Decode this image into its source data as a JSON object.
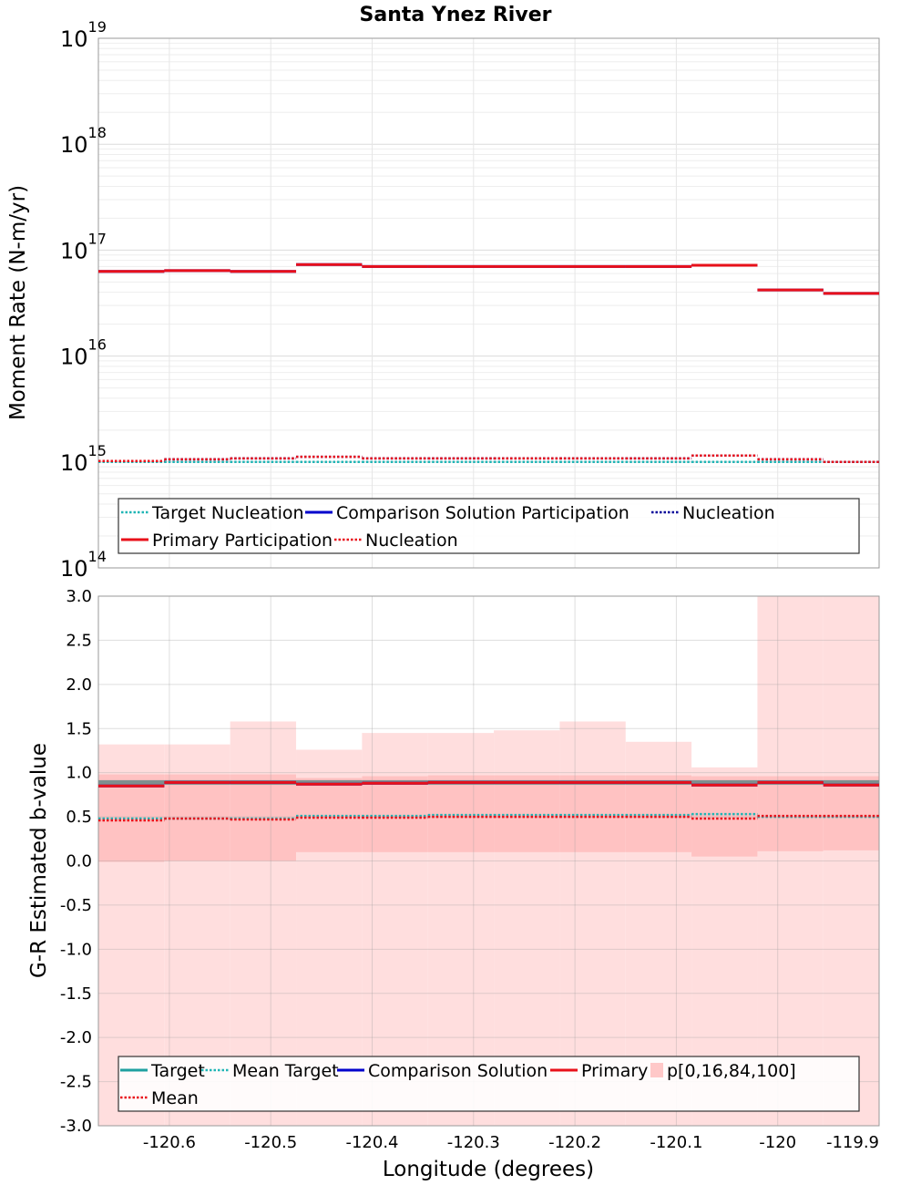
{
  "chart_data": [
    {
      "type": "line",
      "title": "Santa Ynez River",
      "xlabel": "Longitude (degrees)",
      "ylabel": "Moment Rate (N-m/yr)",
      "yscale": "log",
      "ylim": [
        100000000000000.0,
        1e+19
      ],
      "xlim": [
        -120.67,
        -119.9
      ],
      "y_tick_base": "10",
      "y_ticks": [
        {
          "value": 100000000000000.0,
          "exp": "14"
        },
        {
          "value": 1000000000000000.0,
          "exp": "15"
        },
        {
          "value": 1e+16,
          "exp": "16"
        },
        {
          "value": 1e+17,
          "exp": "17"
        },
        {
          "value": 1e+18,
          "exp": "18"
        },
        {
          "value": 1e+19,
          "exp": "19"
        }
      ],
      "bin_edges": [
        -120.67,
        -120.605,
        -120.54,
        -120.475,
        -120.41,
        -120.345,
        -120.28,
        -120.215,
        -120.15,
        -120.085,
        -120.02,
        -119.955,
        -119.9
      ],
      "series": [
        {
          "name": "Target Nucleation",
          "color": "#1fb5b5",
          "style": "dotted",
          "values": [
            1000000000000000.0,
            1000000000000000.0,
            1000000000000000.0,
            1000000000000000.0,
            1000000000000000.0,
            1000000000000000.0,
            1000000000000000.0,
            1000000000000000.0,
            1000000000000000.0,
            1000000000000000.0,
            1000000000000000.0,
            1000000000000000.0
          ]
        },
        {
          "name": "Comparison Solution Participation",
          "color": "#0000cc",
          "style": "solid",
          "values": [
            6.3e+16,
            6.4e+16,
            6.3e+16,
            7.3e+16,
            7e+16,
            7e+16,
            7e+16,
            7e+16,
            7e+16,
            7.2e+16,
            4.2e+16,
            3.9e+16
          ]
        },
        {
          "name": "Nucleation",
          "color": "#000099",
          "style": "dotted",
          "values": [
            1020000000000000.0,
            1060000000000000.0,
            1080000000000000.0,
            1120000000000000.0,
            1080000000000000.0,
            1080000000000000.0,
            1080000000000000.0,
            1080000000000000.0,
            1080000000000000.0,
            1150000000000000.0,
            1060000000000000.0,
            1000000000000000.0
          ]
        },
        {
          "name": "Primary Participation",
          "color": "#e8101a",
          "style": "solid",
          "values": [
            6.3e+16,
            6.4e+16,
            6.3e+16,
            7.3e+16,
            7e+16,
            7e+16,
            7e+16,
            7e+16,
            7e+16,
            7.2e+16,
            4.2e+16,
            3.9e+16
          ]
        },
        {
          "name": "Nucleation",
          "color": "#e8101a",
          "style": "dotted",
          "values": [
            1020000000000000.0,
            1060000000000000.0,
            1080000000000000.0,
            1120000000000000.0,
            1080000000000000.0,
            1080000000000000.0,
            1080000000000000.0,
            1080000000000000.0,
            1080000000000000.0,
            1150000000000000.0,
            1060000000000000.0,
            1000000000000000.0
          ]
        }
      ],
      "legend": {
        "position": "bottom",
        "entries": [
          {
            "name": "Target Nucleation",
            "color": "#1fb5b5",
            "style": "dotted"
          },
          {
            "name": "Comparison Solution Participation",
            "color": "#0000cc",
            "style": "solid"
          },
          {
            "name": "Nucleation",
            "color": "#000099",
            "style": "dotted"
          },
          {
            "name": "Primary Participation",
            "color": "#e8101a",
            "style": "solid"
          },
          {
            "name": "Nucleation",
            "color": "#e8101a",
            "style": "dotted"
          }
        ]
      }
    },
    {
      "type": "line",
      "title": "",
      "xlabel": "Longitude (degrees)",
      "ylabel": "G-R Estimated b-value",
      "ylim": [
        -3.0,
        3.0
      ],
      "xlim": [
        -120.67,
        -119.9
      ],
      "x_ticks": [
        {
          "value": -120.6,
          "label": "-120.6"
        },
        {
          "value": -120.5,
          "label": "-120.5"
        },
        {
          "value": -120.4,
          "label": "-120.4"
        },
        {
          "value": -120.3,
          "label": "-120.3"
        },
        {
          "value": -120.2,
          "label": "-120.2"
        },
        {
          "value": -120.1,
          "label": "-120.1"
        },
        {
          "value": -120.0,
          "label": "-120"
        },
        {
          "value": -119.9,
          "label": "-119.9"
        }
      ],
      "y_ticks": [
        {
          "value": 3.0,
          "label": "3.0"
        },
        {
          "value": 2.5,
          "label": "2.5"
        },
        {
          "value": 2.0,
          "label": "2.0"
        },
        {
          "value": 1.5,
          "label": "1.5"
        },
        {
          "value": 1.0,
          "label": "1.0"
        },
        {
          "value": 0.5,
          "label": "0.5"
        },
        {
          "value": 0.0,
          "label": "0.0"
        },
        {
          "value": -0.5,
          "label": "-0.5"
        },
        {
          "value": -1.0,
          "label": "-1.0"
        },
        {
          "value": -1.5,
          "label": "-1.5"
        },
        {
          "value": -2.0,
          "label": "-2.0"
        },
        {
          "value": -2.5,
          "label": "-2.5"
        },
        {
          "value": -3.0,
          "label": "-3.0"
        }
      ],
      "bin_edges": [
        -120.67,
        -120.605,
        -120.54,
        -120.475,
        -120.41,
        -120.345,
        -120.28,
        -120.215,
        -120.15,
        -120.085,
        -120.02,
        -119.955,
        -119.9
      ],
      "percentile_bands": {
        "name": "p[0,16,84,100]",
        "color": "#ff9999",
        "p0": [
          -3.0,
          -3.0,
          -3.0,
          -3.0,
          -3.0,
          -3.0,
          -3.0,
          -3.0,
          -3.0,
          -3.0,
          -3.0,
          -3.0
        ],
        "p16": [
          -0.01,
          0.0,
          0.0,
          0.1,
          0.1,
          0.1,
          0.1,
          0.1,
          0.1,
          0.05,
          0.11,
          0.12
        ],
        "p84": [
          0.98,
          0.98,
          0.98,
          0.94,
          0.96,
          0.97,
          0.97,
          0.97,
          0.97,
          0.96,
          0.96,
          0.96
        ],
        "p100": [
          1.32,
          1.32,
          1.58,
          1.26,
          1.45,
          1.45,
          1.48,
          1.58,
          1.35,
          1.06,
          3.0,
          3.0
        ]
      },
      "series": [
        {
          "name": "Target",
          "color": "#1fa0a0",
          "style": "solid",
          "values": [
            0.89,
            0.89,
            0.89,
            0.89,
            0.89,
            0.89,
            0.89,
            0.89,
            0.89,
            0.89,
            0.89,
            0.89
          ]
        },
        {
          "name": "Mean Target",
          "color": "#1fb5b5",
          "style": "dotted",
          "values": [
            0.48,
            0.48,
            0.48,
            0.51,
            0.51,
            0.52,
            0.52,
            0.52,
            0.52,
            0.53,
            0.5,
            0.5
          ]
        },
        {
          "name": "Comparison Solution",
          "color": "#0000cc",
          "style": "solid",
          "values": [
            0.85,
            0.89,
            0.89,
            0.87,
            0.88,
            0.89,
            0.89,
            0.89,
            0.89,
            0.86,
            0.89,
            0.86
          ]
        },
        {
          "name": "Primary",
          "color": "#e8101a",
          "style": "solid",
          "values": [
            0.85,
            0.89,
            0.89,
            0.87,
            0.88,
            0.89,
            0.89,
            0.89,
            0.89,
            0.86,
            0.89,
            0.86
          ]
        },
        {
          "name": "Mean",
          "color": "#e8101a",
          "style": "dotted",
          "values": [
            0.46,
            0.48,
            0.47,
            0.49,
            0.49,
            0.5,
            0.5,
            0.5,
            0.5,
            0.48,
            0.51,
            0.51
          ]
        }
      ],
      "legend": {
        "position": "bottom",
        "entries": [
          {
            "name": "Target",
            "color": "#1fa0a0",
            "style": "solid"
          },
          {
            "name": "Mean Target",
            "color": "#1fb5b5",
            "style": "dotted"
          },
          {
            "name": "Comparison Solution",
            "color": "#0000cc",
            "style": "solid"
          },
          {
            "name": "Primary",
            "color": "#e8101a",
            "style": "solid"
          },
          {
            "name": "p[0,16,84,100]",
            "color": "#ffb3b3",
            "style": "band"
          },
          {
            "name": "Mean",
            "color": "#e8101a",
            "style": "dotted"
          }
        ]
      }
    }
  ]
}
